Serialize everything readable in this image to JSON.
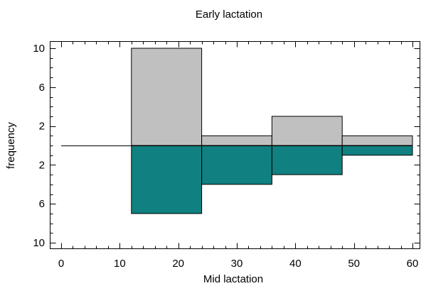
{
  "chart_data": {
    "type": "bar",
    "title": "Early lactation",
    "xlabel": "Mid lactation",
    "ylabel": "frequency",
    "xlim": [
      -2,
      60
    ],
    "ylim": [
      -11,
      10.2
    ],
    "x_ticks": [
      0,
      10,
      20,
      30,
      40,
      50,
      60
    ],
    "y_ticks": [
      {
        "value": 10,
        "label": "10"
      },
      {
        "value": 6,
        "label": "6"
      },
      {
        "value": 2,
        "label": "2"
      },
      {
        "value": -2,
        "label": "2"
      },
      {
        "value": -6,
        "label": "6"
      },
      {
        "value": -10,
        "label": "10"
      }
    ],
    "bin_edges": [
      12,
      24,
      36,
      48,
      60
    ],
    "series": [
      {
        "name": "Early lactation",
        "direction": "up",
        "color": "#c0c0c0",
        "values": [
          10,
          1,
          3,
          1
        ]
      },
      {
        "name": "Mid lactation",
        "direction": "down",
        "color": "#108080",
        "values": [
          7,
          4,
          3,
          1
        ]
      }
    ],
    "baseline_start": 0,
    "grid": false,
    "legend": "none"
  }
}
